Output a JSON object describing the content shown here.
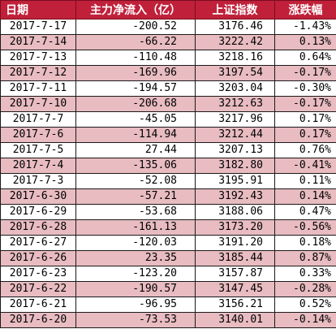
{
  "header": {
    "date": "日期",
    "flow": "主力净流入（亿）",
    "index": "上证指数",
    "change": "涨跌幅"
  },
  "colors": {
    "header_bg": "#c0203a",
    "header_text": "#ffffff",
    "row_alt_bg": "#e8bcc1",
    "row_bg": "#ffffff"
  },
  "rows": [
    {
      "date": "2017-7-17",
      "flow": "-200.52",
      "index": "3176.46",
      "change": "-1.43%"
    },
    {
      "date": "2017-7-14",
      "flow": "-66.22",
      "index": "3222.42",
      "change": "0.13%"
    },
    {
      "date": "2017-7-13",
      "flow": "-110.48",
      "index": "3218.16",
      "change": "0.64%"
    },
    {
      "date": "2017-7-12",
      "flow": "-169.96",
      "index": "3197.54",
      "change": "-0.17%"
    },
    {
      "date": "2017-7-11",
      "flow": "-194.57",
      "index": "3203.04",
      "change": "-0.30%"
    },
    {
      "date": "2017-7-10",
      "flow": "-206.68",
      "index": "3212.63",
      "change": "-0.17%"
    },
    {
      "date": "2017-7-7",
      "flow": "-45.05",
      "index": "3217.96",
      "change": "0.17%"
    },
    {
      "date": "2017-7-6",
      "flow": "-114.94",
      "index": "3212.44",
      "change": "0.17%"
    },
    {
      "date": "2017-7-5",
      "flow": "27.44",
      "index": "3207.13",
      "change": "0.76%"
    },
    {
      "date": "2017-7-4",
      "flow": "-135.06",
      "index": "3182.80",
      "change": "-0.41%"
    },
    {
      "date": "2017-7-3",
      "flow": "-52.08",
      "index": "3195.91",
      "change": "0.11%"
    },
    {
      "date": "2017-6-30",
      "flow": "-57.21",
      "index": "3192.43",
      "change": "0.14%"
    },
    {
      "date": "2017-6-29",
      "flow": "-53.68",
      "index": "3188.06",
      "change": "0.47%"
    },
    {
      "date": "2017-6-28",
      "flow": "-161.13",
      "index": "3173.20",
      "change": "-0.56%"
    },
    {
      "date": "2017-6-27",
      "flow": "-120.03",
      "index": "3191.20",
      "change": "0.18%"
    },
    {
      "date": "2017-6-26",
      "flow": "23.35",
      "index": "3185.44",
      "change": "0.87%"
    },
    {
      "date": "2017-6-23",
      "flow": "-123.20",
      "index": "3157.87",
      "change": "0.33%"
    },
    {
      "date": "2017-6-22",
      "flow": "-190.57",
      "index": "3147.45",
      "change": "-0.28%"
    },
    {
      "date": "2017-6-21",
      "flow": "-96.95",
      "index": "3156.21",
      "change": "0.52%"
    },
    {
      "date": "2017-6-20",
      "flow": "-73.53",
      "index": "3140.01",
      "change": "-0.14%"
    }
  ]
}
